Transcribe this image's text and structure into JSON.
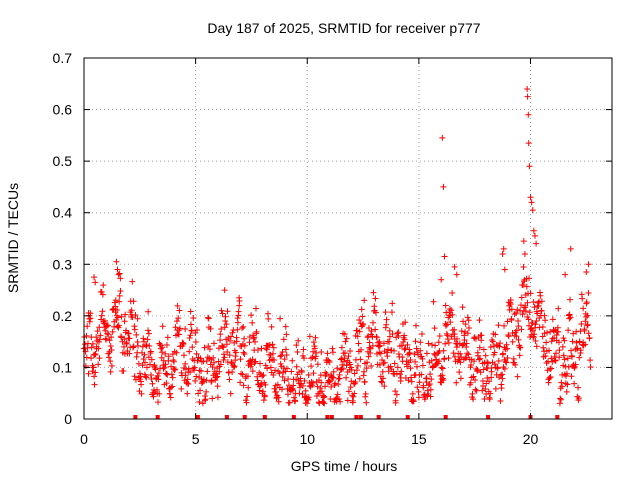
{
  "chart_data": {
    "type": "scatter",
    "title": "Day 187 of 2025, SRMTID for receiver p777",
    "xlabel": "GPS time / hours",
    "ylabel": "SRMTID / TECUs",
    "xlim": [
      0,
      23.65
    ],
    "ylim": [
      0,
      0.7
    ],
    "xticks": [
      0,
      5,
      10,
      15,
      20
    ],
    "yticks": [
      0,
      0.1,
      0.2,
      0.3,
      0.4,
      0.5,
      0.6,
      0.7
    ],
    "xtick_labels": [
      "0",
      "5",
      "10",
      "15",
      "20"
    ],
    "ytick_labels": [
      "0",
      "0.1",
      "0.2",
      "0.3",
      "0.4",
      "0.5",
      "0.6",
      "0.7"
    ],
    "grid": true,
    "marker": "+",
    "color": "#ff0000",
    "trend": {
      "x": [
        0,
        0.5,
        1.0,
        1.5,
        2.0,
        2.5,
        3.0,
        3.5,
        4.0,
        4.5,
        5.0,
        5.5,
        6.0,
        6.5,
        7.0,
        7.5,
        8.0,
        8.5,
        9.0,
        9.5,
        10.0,
        10.5,
        11.0,
        11.5,
        12.0,
        12.5,
        13.0,
        13.5,
        14.0,
        14.5,
        15.0,
        15.5,
        16.0,
        16.5,
        17.0,
        17.5,
        18.0,
        18.5,
        19.0,
        19.5,
        20.0,
        20.5,
        21.0,
        21.5,
        22.0,
        22.5,
        22.7
      ],
      "y": [
        0.12,
        0.17,
        0.18,
        0.19,
        0.17,
        0.12,
        0.1,
        0.09,
        0.12,
        0.14,
        0.1,
        0.09,
        0.12,
        0.16,
        0.13,
        0.11,
        0.1,
        0.11,
        0.09,
        0.08,
        0.08,
        0.08,
        0.07,
        0.08,
        0.09,
        0.13,
        0.14,
        0.13,
        0.12,
        0.11,
        0.09,
        0.09,
        0.14,
        0.17,
        0.13,
        0.11,
        0.09,
        0.1,
        0.14,
        0.19,
        0.22,
        0.17,
        0.13,
        0.12,
        0.14,
        0.17,
        0.16
      ]
    },
    "spikes": [
      {
        "x": 16.05,
        "y": 0.545
      },
      {
        "x": 16.1,
        "y": 0.45
      },
      {
        "x": 16.15,
        "y": 0.315
      },
      {
        "x": 16.0,
        "y": 0.27
      },
      {
        "x": 16.2,
        "y": 0.22
      },
      {
        "x": 19.85,
        "y": 0.64
      },
      {
        "x": 19.87,
        "y": 0.625
      },
      {
        "x": 19.9,
        "y": 0.59
      },
      {
        "x": 19.92,
        "y": 0.535
      },
      {
        "x": 19.95,
        "y": 0.49
      },
      {
        "x": 20.0,
        "y": 0.43
      },
      {
        "x": 20.05,
        "y": 0.42
      },
      {
        "x": 20.1,
        "y": 0.405
      },
      {
        "x": 20.15,
        "y": 0.365
      },
      {
        "x": 20.2,
        "y": 0.355
      },
      {
        "x": 20.25,
        "y": 0.34
      },
      {
        "x": 19.7,
        "y": 0.345
      },
      {
        "x": 19.75,
        "y": 0.32
      },
      {
        "x": 18.8,
        "y": 0.33
      },
      {
        "x": 18.75,
        "y": 0.32
      },
      {
        "x": 18.85,
        "y": 0.29
      },
      {
        "x": 21.8,
        "y": 0.33
      },
      {
        "x": 22.6,
        "y": 0.3
      },
      {
        "x": 22.5,
        "y": 0.285
      },
      {
        "x": 1.45,
        "y": 0.305
      },
      {
        "x": 1.5,
        "y": 0.29
      },
      {
        "x": 1.55,
        "y": 0.28
      },
      {
        "x": 0.45,
        "y": 0.275
      },
      {
        "x": 0.5,
        "y": 0.265
      },
      {
        "x": 6.95,
        "y": 0.235
      },
      {
        "x": 6.3,
        "y": 0.25
      },
      {
        "x": 12.55,
        "y": 0.23
      },
      {
        "x": 16.6,
        "y": 0.295
      },
      {
        "x": 16.7,
        "y": 0.28
      },
      {
        "x": 21.55,
        "y": 0.28
      }
    ],
    "baseline_markers_x": [
      2.3,
      3.3,
      5.1,
      6.4,
      7.2,
      8.1,
      9.4,
      10.9,
      11.1,
      12.2,
      12.4,
      13.2,
      14.5,
      16.2,
      18.1,
      20.0,
      21.2
    ]
  }
}
